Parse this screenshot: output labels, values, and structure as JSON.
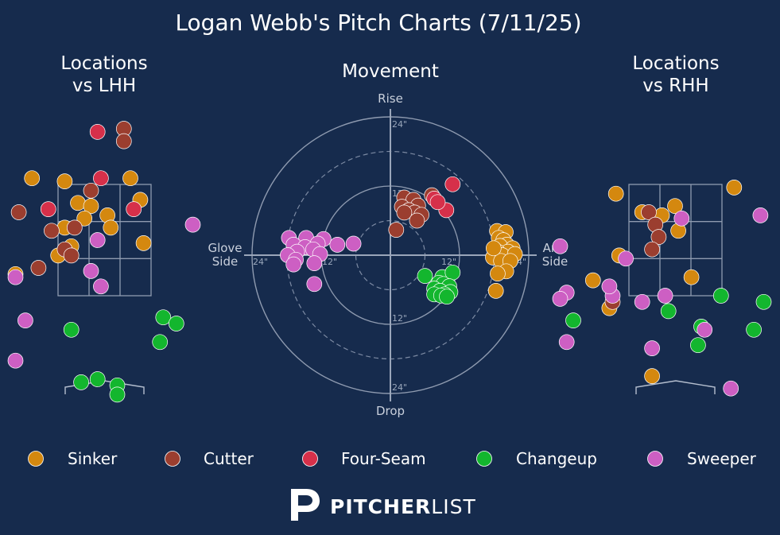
{
  "chart_data": {
    "type": "scatter",
    "title": "Logan Webb's Pitch Charts (7/11/25)",
    "panels": {
      "lhh": {
        "title_line1": "Locations",
        "title_line2": "vs LHH"
      },
      "movement": {
        "title": "Movement",
        "labels": {
          "top": "Rise",
          "bottom": "Drop",
          "left_1": "Glove",
          "left_2": "Side",
          "right_1": "Arm",
          "right_2": "Side"
        },
        "ring_labels": {
          "r12": "12\"",
          "r24": "24\""
        },
        "rings_in": [
          6,
          12,
          18,
          24
        ],
        "axis_range_in": [
          -25,
          25
        ]
      },
      "rhh": {
        "title_line1": "Locations",
        "title_line2": "vs RHH"
      }
    },
    "pitch_types": [
      {
        "name": "Sinker",
        "color": "#d4880f"
      },
      {
        "name": "Cutter",
        "color": "#9b3e2f"
      },
      {
        "name": "Four-Seam",
        "color": "#d6304a"
      },
      {
        "name": "Changeup",
        "color": "#13b62e"
      },
      {
        "name": "Sweeper",
        "color": "#cd5fc3"
      }
    ],
    "locations_lhh": [
      {
        "type": "Sinker",
        "x": -1.1,
        "z": 3.5
      },
      {
        "type": "Sinker",
        "x": -0.6,
        "z": 3.45
      },
      {
        "type": "Sinker",
        "x": -0.4,
        "z": 3.1
      },
      {
        "type": "Sinker",
        "x": -0.2,
        "z": 3.05
      },
      {
        "type": "Sinker",
        "x": -0.3,
        "z": 2.85
      },
      {
        "type": "Sinker",
        "x": 0.05,
        "z": 2.9
      },
      {
        "type": "Sinker",
        "x": 0.4,
        "z": 3.5
      },
      {
        "type": "Sinker",
        "x": 0.55,
        "z": 3.15
      },
      {
        "type": "Sinker",
        "x": 0.1,
        "z": 2.7
      },
      {
        "type": "Sinker",
        "x": -0.6,
        "z": 2.7
      },
      {
        "type": "Sinker",
        "x": -0.7,
        "z": 2.25
      },
      {
        "type": "Sinker",
        "x": -0.5,
        "z": 2.4
      },
      {
        "type": "Sinker",
        "x": -1.75,
        "z": 2.6
      },
      {
        "type": "Sinker",
        "x": -1.35,
        "z": 1.95
      },
      {
        "type": "Sinker",
        "x": 0.6,
        "z": 2.45
      },
      {
        "type": "Cutter",
        "x": 0.3,
        "z": 4.3
      },
      {
        "type": "Cutter",
        "x": 0.3,
        "z": 4.1
      },
      {
        "type": "Cutter",
        "x": -1.3,
        "z": 2.95
      },
      {
        "type": "Cutter",
        "x": -0.8,
        "z": 2.65
      },
      {
        "type": "Cutter",
        "x": -0.45,
        "z": 2.7
      },
      {
        "type": "Cutter",
        "x": -0.6,
        "z": 2.35
      },
      {
        "type": "Cutter",
        "x": -0.5,
        "z": 2.25
      },
      {
        "type": "Cutter",
        "x": -1.0,
        "z": 2.05
      },
      {
        "type": "Cutter",
        "x": -0.2,
        "z": 3.3
      },
      {
        "type": "Four-Seam",
        "x": -0.1,
        "z": 4.25
      },
      {
        "type": "Four-Seam",
        "x": -0.05,
        "z": 3.5
      },
      {
        "type": "Four-Seam",
        "x": -0.85,
        "z": 3.0
      },
      {
        "type": "Four-Seam",
        "x": 0.45,
        "z": 3.0
      },
      {
        "type": "Changeup",
        "x": -0.5,
        "z": 1.05
      },
      {
        "type": "Changeup",
        "x": 0.9,
        "z": 1.25
      },
      {
        "type": "Changeup",
        "x": 1.1,
        "z": 1.15
      },
      {
        "type": "Changeup",
        "x": 0.85,
        "z": 0.85
      },
      {
        "type": "Changeup",
        "x": -0.1,
        "z": 0.25
      },
      {
        "type": "Changeup",
        "x": -0.35,
        "z": 0.2
      },
      {
        "type": "Changeup",
        "x": 0.2,
        "z": 0.15
      },
      {
        "type": "Changeup",
        "x": 0.2,
        "z": 0.0
      },
      {
        "type": "Sweeper",
        "x": 1.35,
        "z": 2.75
      },
      {
        "type": "Sweeper",
        "x": -0.1,
        "z": 2.5
      },
      {
        "type": "Sweeper",
        "x": -0.2,
        "z": 2.0
      },
      {
        "type": "Sweeper",
        "x": -0.05,
        "z": 1.75
      },
      {
        "type": "Sweeper",
        "x": -1.35,
        "z": 1.9
      },
      {
        "type": "Sweeper",
        "x": -1.2,
        "z": 1.2
      },
      {
        "type": "Sweeper",
        "x": -1.35,
        "z": 0.55
      }
    ],
    "movement": [
      {
        "type": "Sinker",
        "h": 18.5,
        "v": 4.2
      },
      {
        "type": "Sinker",
        "h": 20.0,
        "v": 4.0
      },
      {
        "type": "Sinker",
        "h": 18.8,
        "v": 3.0
      },
      {
        "type": "Sinker",
        "h": 19.6,
        "v": 2.6
      },
      {
        "type": "Sinker",
        "h": 20.2,
        "v": 1.8
      },
      {
        "type": "Sinker",
        "h": 19.0,
        "v": 1.6
      },
      {
        "type": "Sinker",
        "h": 21.2,
        "v": 1.2
      },
      {
        "type": "Sinker",
        "h": 20.4,
        "v": 0.6
      },
      {
        "type": "Sinker",
        "h": 18.6,
        "v": 0.6
      },
      {
        "type": "Sinker",
        "h": 19.4,
        "v": 0.0
      },
      {
        "type": "Sinker",
        "h": 21.6,
        "v": 0.2
      },
      {
        "type": "Sinker",
        "h": 17.8,
        "v": -0.4
      },
      {
        "type": "Sinker",
        "h": 19.2,
        "v": -1.0
      },
      {
        "type": "Sinker",
        "h": 20.8,
        "v": -1.0
      },
      {
        "type": "Sinker",
        "h": 17.9,
        "v": 1.2
      },
      {
        "type": "Sinker",
        "h": 20.1,
        "v": -2.8
      },
      {
        "type": "Sinker",
        "h": 18.6,
        "v": -3.2
      },
      {
        "type": "Sinker",
        "h": 18.3,
        "v": -6.2
      },
      {
        "type": "Cutter",
        "h": 2.4,
        "v": 10.0
      },
      {
        "type": "Cutter",
        "h": 4.0,
        "v": 9.6
      },
      {
        "type": "Cutter",
        "h": 4.8,
        "v": 8.6
      },
      {
        "type": "Cutter",
        "h": 2.0,
        "v": 8.4
      },
      {
        "type": "Cutter",
        "h": 3.2,
        "v": 7.8
      },
      {
        "type": "Cutter",
        "h": 4.2,
        "v": 7.4
      },
      {
        "type": "Cutter",
        "h": 5.4,
        "v": 7.0
      },
      {
        "type": "Cutter",
        "h": 2.4,
        "v": 7.4
      },
      {
        "type": "Cutter",
        "h": 4.6,
        "v": 6.0
      },
      {
        "type": "Cutter",
        "h": 7.2,
        "v": 10.4
      },
      {
        "type": "Cutter",
        "h": 1.0,
        "v": 4.4
      },
      {
        "type": "Four-Seam",
        "h": 7.6,
        "v": 9.8
      },
      {
        "type": "Four-Seam",
        "h": 10.8,
        "v": 12.3
      },
      {
        "type": "Four-Seam",
        "h": 9.7,
        "v": 7.8
      },
      {
        "type": "Four-Seam",
        "h": 8.2,
        "v": 9.2
      },
      {
        "type": "Changeup",
        "h": 6.0,
        "v": -3.6
      },
      {
        "type": "Changeup",
        "h": 9.0,
        "v": -3.8
      },
      {
        "type": "Changeup",
        "h": 10.8,
        "v": -3.0
      },
      {
        "type": "Changeup",
        "h": 8.4,
        "v": -4.8
      },
      {
        "type": "Changeup",
        "h": 9.2,
        "v": -5.0
      },
      {
        "type": "Changeup",
        "h": 10.2,
        "v": -5.4
      },
      {
        "type": "Changeup",
        "h": 7.6,
        "v": -5.8
      },
      {
        "type": "Changeup",
        "h": 8.6,
        "v": -6.2
      },
      {
        "type": "Changeup",
        "h": 10.4,
        "v": -6.4
      },
      {
        "type": "Changeup",
        "h": 7.6,
        "v": -6.8
      },
      {
        "type": "Changeup",
        "h": 9.4,
        "v": -6.8
      },
      {
        "type": "Changeup",
        "h": 8.8,
        "v": -7.0
      },
      {
        "type": "Changeup",
        "h": 9.8,
        "v": -7.2
      },
      {
        "type": "Sweeper",
        "h": -17.6,
        "v": 3.0
      },
      {
        "type": "Sweeper",
        "h": -14.6,
        "v": 3.0
      },
      {
        "type": "Sweeper",
        "h": -11.6,
        "v": 2.8
      },
      {
        "type": "Sweeper",
        "h": -12.6,
        "v": 2.0
      },
      {
        "type": "Sweeper",
        "h": -16.8,
        "v": 1.8
      },
      {
        "type": "Sweeper",
        "h": -14.8,
        "v": 1.4
      },
      {
        "type": "Sweeper",
        "h": -9.2,
        "v": 1.8
      },
      {
        "type": "Sweeper",
        "h": -6.4,
        "v": 2.0
      },
      {
        "type": "Sweeper",
        "h": -13.4,
        "v": 1.0
      },
      {
        "type": "Sweeper",
        "h": -16.2,
        "v": 0.6
      },
      {
        "type": "Sweeper",
        "h": -12.2,
        "v": 0.2
      },
      {
        "type": "Sweeper",
        "h": -17.8,
        "v": 0.0
      },
      {
        "type": "Sweeper",
        "h": -16.4,
        "v": -0.8
      },
      {
        "type": "Sweeper",
        "h": -13.2,
        "v": -1.4
      },
      {
        "type": "Sweeper",
        "h": -16.8,
        "v": -1.6
      },
      {
        "type": "Sweeper",
        "h": -13.2,
        "v": -5.0
      }
    ],
    "locations_rhh": [
      {
        "type": "Sinker",
        "x": -0.9,
        "z": 3.25
      },
      {
        "type": "Sinker",
        "x": -0.5,
        "z": 2.95
      },
      {
        "type": "Sinker",
        "x": -0.2,
        "z": 2.9
      },
      {
        "type": "Sinker",
        "x": 0.0,
        "z": 3.05
      },
      {
        "type": "Sinker",
        "x": 0.05,
        "z": 2.65
      },
      {
        "type": "Sinker",
        "x": 0.9,
        "z": 3.35
      },
      {
        "type": "Sinker",
        "x": -0.85,
        "z": 2.25
      },
      {
        "type": "Sinker",
        "x": -1.25,
        "z": 1.85
      },
      {
        "type": "Sinker",
        "x": 0.25,
        "z": 1.9
      },
      {
        "type": "Sinker",
        "x": -1.0,
        "z": 1.4
      },
      {
        "type": "Sinker",
        "x": 2.0,
        "z": 1.2
      },
      {
        "type": "Sinker",
        "x": 2.4,
        "z": 0.8
      },
      {
        "type": "Sinker",
        "x": -0.35,
        "z": 0.3
      },
      {
        "type": "Cutter",
        "x": -0.4,
        "z": 2.95
      },
      {
        "type": "Cutter",
        "x": -0.3,
        "z": 2.75
      },
      {
        "type": "Cutter",
        "x": -0.25,
        "z": 2.55
      },
      {
        "type": "Cutter",
        "x": -0.35,
        "z": 2.35
      },
      {
        "type": "Cutter",
        "x": -0.95,
        "z": 1.5
      },
      {
        "type": "Changeup",
        "x": 0.7,
        "z": 1.6
      },
      {
        "type": "Changeup",
        "x": 1.35,
        "z": 1.5
      },
      {
        "type": "Changeup",
        "x": -0.1,
        "z": 1.35
      },
      {
        "type": "Changeup",
        "x": -1.55,
        "z": 1.2
      },
      {
        "type": "Changeup",
        "x": 1.2,
        "z": 1.05
      },
      {
        "type": "Changeup",
        "x": 0.4,
        "z": 1.1
      },
      {
        "type": "Changeup",
        "x": 0.35,
        "z": 0.8
      },
      {
        "type": "Sweeper",
        "x": 1.3,
        "z": 2.9
      },
      {
        "type": "Sweeper",
        "x": 0.1,
        "z": 2.85
      },
      {
        "type": "Sweeper",
        "x": -1.75,
        "z": 2.4
      },
      {
        "type": "Sweeper",
        "x": -0.75,
        "z": 2.2
      },
      {
        "type": "Sweeper",
        "x": -1.65,
        "z": 1.65
      },
      {
        "type": "Sweeper",
        "x": -1.75,
        "z": 1.55
      },
      {
        "type": "Sweeper",
        "x": -0.95,
        "z": 1.6
      },
      {
        "type": "Sweeper",
        "x": -0.5,
        "z": 1.5
      },
      {
        "type": "Sweeper",
        "x": -0.15,
        "z": 1.6
      },
      {
        "type": "Sweeper",
        "x": -1.0,
        "z": 1.75
      },
      {
        "type": "Sweeper",
        "x": -1.65,
        "z": 0.85
      },
      {
        "type": "Sweeper",
        "x": -0.35,
        "z": 0.75
      },
      {
        "type": "Sweeper",
        "x": 0.45,
        "z": 1.05
      },
      {
        "type": "Sweeper",
        "x": 0.85,
        "z": 0.1
      }
    ]
  },
  "logo": {
    "bold": "PITCHER",
    "light": "LIST"
  }
}
